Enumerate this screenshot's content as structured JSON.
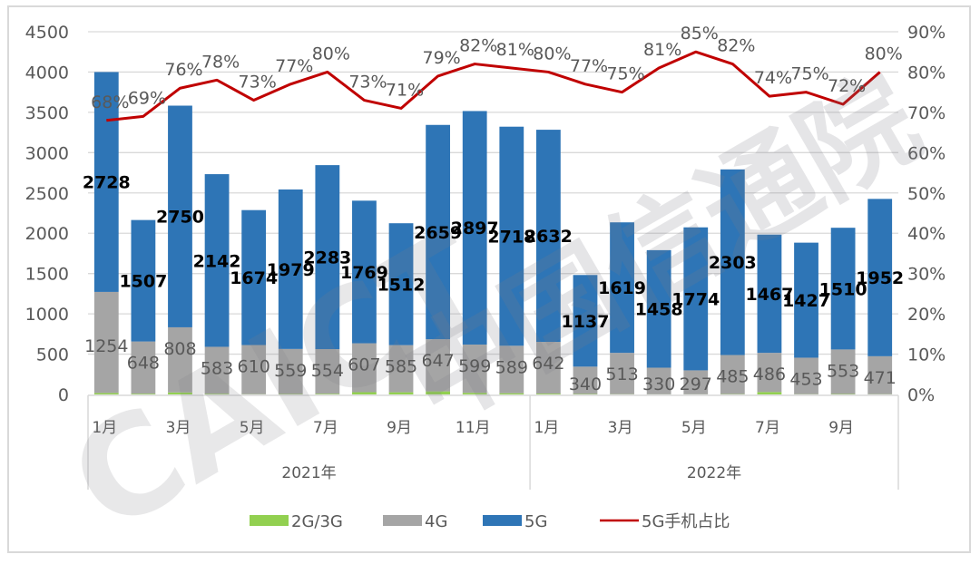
{
  "chart_data": {
    "type": "bar",
    "stacked": true,
    "title": "",
    "xlabel": "",
    "ylabel": "",
    "y2label": "",
    "ylim": [
      0,
      4500
    ],
    "y2lim": [
      0,
      0.9
    ],
    "yticks": [
      "0",
      "500",
      "1000",
      "1500",
      "2000",
      "2500",
      "3000",
      "3500",
      "4000",
      "4500"
    ],
    "y2ticks": [
      "0%",
      "10%",
      "20%",
      "30%",
      "40%",
      "50%",
      "60%",
      "70%",
      "80%",
      "90%"
    ],
    "grid": true,
    "legend_position": "bottom",
    "groups": [
      {
        "label": "2021年",
        "months": [
          "1月",
          "2月",
          "3月",
          "4月",
          "5月",
          "6月",
          "7月",
          "8月",
          "9月",
          "10月",
          "11月",
          "12月"
        ]
      },
      {
        "label": "2022年",
        "months": [
          "1月",
          "2月",
          "3月",
          "4月",
          "5月",
          "6月",
          "7月",
          "8月",
          "9月",
          "10月"
        ]
      }
    ],
    "x_tick_labels_shown": [
      "1月",
      "",
      "3月",
      "",
      "5月",
      "",
      "7月",
      "",
      "9月",
      "",
      "11月",
      "",
      "1月",
      "",
      "3月",
      "",
      "5月",
      "",
      "7月",
      "",
      "9月",
      ""
    ],
    "categories": [
      "2021-01",
      "2021-02",
      "2021-03",
      "2021-04",
      "2021-05",
      "2021-06",
      "2021-07",
      "2021-08",
      "2021-09",
      "2021-10",
      "2021-11",
      "2021-12",
      "2022-01",
      "2022-02",
      "2022-03",
      "2022-04",
      "2022-05",
      "2022-06",
      "2022-07",
      "2022-08",
      "2022-09",
      "2022-10"
    ],
    "series": [
      {
        "name": "2G/3G",
        "type": "bar",
        "color": "#92d050",
        "values": [
          18,
          9,
          25,
          8,
          3,
          5,
          8,
          28,
          27,
          38,
          20,
          15,
          10,
          5,
          3,
          2,
          2,
          4,
          30,
          3,
          5,
          3
        ]
      },
      {
        "name": "4G",
        "type": "bar",
        "color": "#a5a5a5",
        "values": [
          1254,
          648,
          808,
          583,
          610,
          559,
          554,
          607,
          585,
          647,
          599,
          589,
          642,
          340,
          513,
          330,
          297,
          485,
          486,
          453,
          553,
          471
        ]
      },
      {
        "name": "5G",
        "type": "bar",
        "color": "#2e75b6",
        "values": [
          2728,
          1507,
          2750,
          2142,
          1674,
          1979,
          2283,
          1769,
          1512,
          2659,
          2897,
          2718,
          2632,
          1137,
          1619,
          1458,
          1774,
          2303,
          1467,
          1427,
          1510,
          1952
        ]
      },
      {
        "name": "5G手机占比",
        "type": "line",
        "axis": "right",
        "color": "#c00000",
        "values": [
          0.68,
          0.69,
          0.76,
          0.78,
          0.73,
          0.77,
          0.8,
          0.73,
          0.71,
          0.79,
          0.82,
          0.81,
          0.8,
          0.77,
          0.75,
          0.81,
          0.85,
          0.82,
          0.74,
          0.75,
          0.72,
          0.8
        ],
        "labels": [
          "68%",
          "69%",
          "76%",
          "78%",
          "73%",
          "77%",
          "80%",
          "73%",
          "71%",
          "79%",
          "82%",
          "81%",
          "80%",
          "77%",
          "75%",
          "81%",
          "85%",
          "82%",
          "74%",
          "75%",
          "72%",
          "80%"
        ]
      }
    ]
  },
  "legend": [
    {
      "label": "2G/3G",
      "color": "#92d050",
      "kind": "box"
    },
    {
      "label": "4G",
      "color": "#a5a5a5",
      "kind": "box"
    },
    {
      "label": "5G",
      "color": "#2e75b6",
      "kind": "box"
    },
    {
      "label": "5G手机占比",
      "color": "#c00000",
      "kind": "line"
    }
  ],
  "watermark": {
    "text1": "CAICT",
    "text2": "中国信通院"
  }
}
